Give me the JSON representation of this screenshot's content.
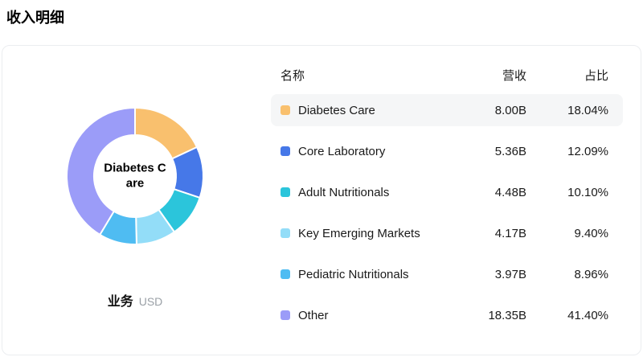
{
  "page_title": "收入明细",
  "panel": {
    "center_label": "Diabetes Care",
    "footer_label": "业务",
    "footer_unit": "USD"
  },
  "table": {
    "headers": {
      "name": "名称",
      "revenue": "营收",
      "share": "占比"
    }
  },
  "chart_data": {
    "type": "pie",
    "subtype": "donut",
    "title": "收入明细",
    "unit": "USD",
    "center_label": "Diabetes Care",
    "legend_position": "right-table",
    "start_angle_deg": -90,
    "direction": "clockwise",
    "series": [
      {
        "name": "Diabetes Care",
        "revenue": "8.00B",
        "revenue_billions": 8.0,
        "share": "18.04%",
        "share_pct": 18.04,
        "color": "#F9C06E",
        "highlighted": true
      },
      {
        "name": "Core Laboratory",
        "revenue": "5.36B",
        "revenue_billions": 5.36,
        "share": "12.09%",
        "share_pct": 12.09,
        "color": "#4678E8",
        "highlighted": false
      },
      {
        "name": "Adult Nutritionals",
        "revenue": "4.48B",
        "revenue_billions": 4.48,
        "share": "10.10%",
        "share_pct": 10.1,
        "color": "#2BC5DB",
        "highlighted": false
      },
      {
        "name": "Key Emerging Markets",
        "revenue": "4.17B",
        "revenue_billions": 4.17,
        "share": "9.40%",
        "share_pct": 9.4,
        "color": "#93DDF8",
        "highlighted": false
      },
      {
        "name": "Pediatric Nutritionals",
        "revenue": "3.97B",
        "revenue_billions": 3.97,
        "share": "8.96%",
        "share_pct": 8.96,
        "color": "#4FBCF2",
        "highlighted": false
      },
      {
        "name": "Other",
        "revenue": "18.35B",
        "revenue_billions": 18.35,
        "share": "41.40%",
        "share_pct": 41.4,
        "color": "#9B9CF8",
        "highlighted": false
      }
    ]
  }
}
